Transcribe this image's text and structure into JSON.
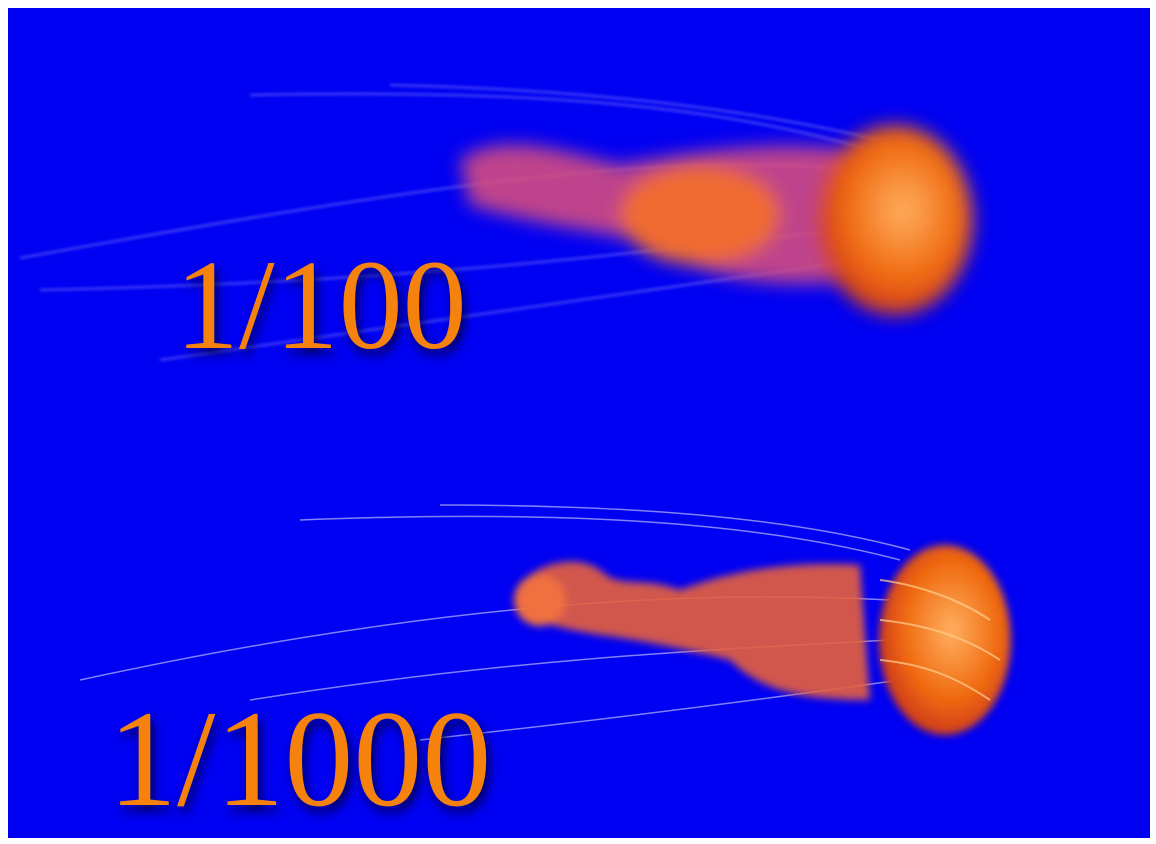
{
  "labels": {
    "top": "1/100",
    "bottom": "1/1000"
  }
}
